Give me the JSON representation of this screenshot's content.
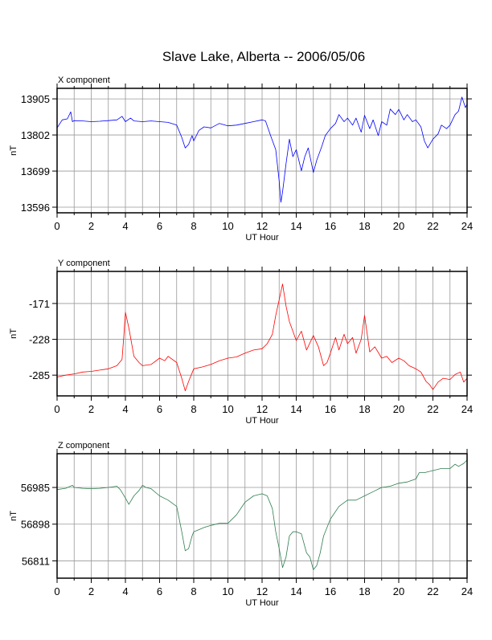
{
  "title": "Slave Lake, Alberta -- 2006/05/06",
  "chart_data": [
    {
      "type": "line",
      "panel_label": "X component",
      "xlabel": "UT Hour",
      "ylabel": "nT",
      "color": "#0000ff",
      "xlim": [
        0,
        24
      ],
      "ylim": [
        13580,
        13935
      ],
      "xticks": [
        0,
        2,
        4,
        6,
        8,
        10,
        12,
        14,
        16,
        18,
        20,
        22,
        24
      ],
      "yticks": [
        13596,
        13699,
        13802,
        13905
      ],
      "grid": true,
      "x": [
        0,
        0.3,
        0.6,
        0.8,
        0.9,
        1.0,
        1.5,
        2.0,
        2.5,
        3.0,
        3.5,
        3.8,
        4.0,
        4.3,
        4.5,
        5.0,
        5.5,
        6.0,
        6.5,
        7.0,
        7.3,
        7.5,
        7.7,
        7.9,
        8.0,
        8.3,
        8.6,
        9.0,
        9.5,
        10.0,
        10.5,
        11.0,
        11.5,
        12.0,
        12.2,
        12.5,
        12.8,
        13.0,
        13.1,
        13.2,
        13.4,
        13.6,
        13.8,
        14.0,
        14.3,
        14.5,
        14.7,
        15.0,
        15.2,
        15.5,
        15.7,
        16.0,
        16.3,
        16.5,
        16.8,
        17.0,
        17.3,
        17.5,
        17.8,
        18.0,
        18.3,
        18.5,
        18.8,
        19.0,
        19.3,
        19.5,
        19.8,
        20.0,
        20.3,
        20.5,
        20.8,
        21.0,
        21.3,
        21.5,
        21.7,
        22.0,
        22.3,
        22.5,
        22.8,
        23.0,
        23.3,
        23.5,
        23.7,
        23.8,
        23.9,
        24.0
      ],
      "y": [
        13822,
        13845,
        13848,
        13868,
        13840,
        13843,
        13842,
        13840,
        13841,
        13843,
        13845,
        13855,
        13840,
        13850,
        13842,
        13840,
        13842,
        13840,
        13838,
        13830,
        13795,
        13765,
        13775,
        13800,
        13785,
        13815,
        13825,
        13822,
        13835,
        13828,
        13830,
        13835,
        13840,
        13845,
        13842,
        13800,
        13760,
        13670,
        13610,
        13640,
        13720,
        13790,
        13740,
        13760,
        13700,
        13740,
        13765,
        13695,
        13730,
        13770,
        13800,
        13820,
        13835,
        13860,
        13840,
        13850,
        13830,
        13850,
        13810,
        13858,
        13820,
        13845,
        13800,
        13840,
        13830,
        13876,
        13860,
        13875,
        13845,
        13860,
        13840,
        13845,
        13825,
        13785,
        13765,
        13790,
        13805,
        13830,
        13820,
        13830,
        13860,
        13870,
        13910,
        13895,
        13880,
        13890
      ]
    },
    {
      "type": "line",
      "panel_label": "Y component",
      "xlabel": "UT Hour",
      "ylabel": "nT",
      "color": "#ff0000",
      "xlim": [
        0,
        24
      ],
      "ylim": [
        -318,
        -120
      ],
      "xticks": [
        0,
        2,
        4,
        6,
        8,
        10,
        12,
        14,
        16,
        18,
        20,
        22,
        24
      ],
      "yticks": [
        -171,
        -228,
        -285
      ],
      "grid": true,
      "x": [
        0,
        0.5,
        1.0,
        1.5,
        2.0,
        2.5,
        3.0,
        3.5,
        3.8,
        3.9,
        4.0,
        4.2,
        4.5,
        4.8,
        5.0,
        5.5,
        6.0,
        6.3,
        6.5,
        7.0,
        7.3,
        7.5,
        7.7,
        8.0,
        8.5,
        9.0,
        9.5,
        10.0,
        10.5,
        11.0,
        11.5,
        12.0,
        12.3,
        12.6,
        12.8,
        13.0,
        13.2,
        13.4,
        13.6,
        13.8,
        14.0,
        14.3,
        14.6,
        15.0,
        15.3,
        15.6,
        15.8,
        16.0,
        16.3,
        16.5,
        16.8,
        17.0,
        17.3,
        17.5,
        17.8,
        18.0,
        18.3,
        18.6,
        19.0,
        19.3,
        19.6,
        20.0,
        20.3,
        20.6,
        21.0,
        21.3,
        21.6,
        21.8,
        22.0,
        22.3,
        22.6,
        23.0,
        23.3,
        23.6,
        23.8,
        24.0
      ],
      "y": [
        -288,
        -285,
        -283,
        -280,
        -279,
        -277,
        -275,
        -270,
        -260,
        -225,
        -185,
        -210,
        -255,
        -265,
        -270,
        -268,
        -258,
        -262,
        -255,
        -265,
        -290,
        -310,
        -295,
        -275,
        -272,
        -268,
        -262,
        -258,
        -256,
        -250,
        -245,
        -243,
        -235,
        -220,
        -190,
        -165,
        -140,
        -175,
        -200,
        -215,
        -230,
        -215,
        -245,
        -222,
        -240,
        -270,
        -265,
        -250,
        -225,
        -245,
        -220,
        -235,
        -225,
        -250,
        -228,
        -190,
        -248,
        -240,
        -258,
        -255,
        -265,
        -258,
        -262,
        -270,
        -275,
        -280,
        -295,
        -300,
        -308,
        -296,
        -290,
        -292,
        -284,
        -280,
        -296,
        -290
      ]
    },
    {
      "type": "line",
      "panel_label": "Z component",
      "xlabel": "UT Hour",
      "ylabel": "nT",
      "color": "#2e7d4f",
      "xlim": [
        0,
        24
      ],
      "ylim": [
        56770,
        57065
      ],
      "xticks": [
        0,
        2,
        4,
        6,
        8,
        10,
        12,
        14,
        16,
        18,
        20,
        22,
        24
      ],
      "yticks": [
        56985,
        56898,
        56811
      ],
      "grid": true,
      "x": [
        0,
        0.5,
        0.9,
        1.0,
        1.5,
        2.0,
        2.5,
        3.0,
        3.5,
        3.7,
        4.0,
        4.2,
        4.5,
        4.8,
        5.0,
        5.2,
        5.5,
        6.0,
        6.5,
        7.0,
        7.3,
        7.5,
        7.7,
        7.9,
        8.0,
        8.3,
        8.6,
        9.0,
        9.5,
        10.0,
        10.5,
        11.0,
        11.5,
        12.0,
        12.3,
        12.6,
        12.8,
        13.0,
        13.2,
        13.4,
        13.6,
        13.8,
        14.0,
        14.3,
        14.6,
        14.8,
        15.0,
        15.2,
        15.4,
        15.6,
        16.0,
        16.5,
        17.0,
        17.5,
        18.0,
        18.5,
        19.0,
        19.5,
        20.0,
        20.5,
        21.0,
        21.2,
        21.5,
        22.0,
        22.5,
        23.0,
        23.3,
        23.5,
        23.8,
        24.0
      ],
      "y": [
        56980,
        56983,
        56990,
        56985,
        56983,
        56982,
        56983,
        56985,
        56988,
        56980,
        56960,
        56945,
        56965,
        56978,
        56990,
        56985,
        56982,
        56965,
        56955,
        56940,
        56880,
        56835,
        56840,
        56870,
        56880,
        56885,
        56890,
        56895,
        56900,
        56900,
        56920,
        56950,
        56965,
        56970,
        56965,
        56935,
        56880,
        56840,
        56795,
        56820,
        56870,
        56880,
        56880,
        56875,
        56830,
        56820,
        56790,
        56800,
        56830,
        56870,
        56910,
        56940,
        56955,
        56955,
        56965,
        56975,
        56985,
        56988,
        56995,
        56998,
        57005,
        57020,
        57020,
        57025,
        57030,
        57030,
        57040,
        57035,
        57042,
        57050
      ]
    }
  ]
}
